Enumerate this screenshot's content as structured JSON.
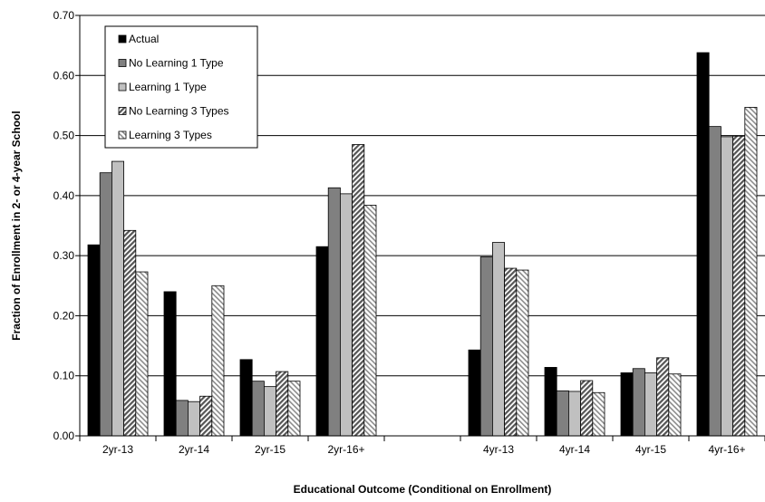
{
  "chart_data": {
    "type": "bar",
    "title": "",
    "xlabel": "Educational Outcome (Conditional on Enrollment)",
    "ylabel": "Fraction of Enrollment in 2- or 4-year School",
    "ylim": [
      0,
      0.7
    ],
    "yticks": [
      "0.00",
      "0.10",
      "0.20",
      "0.30",
      "0.40",
      "0.50",
      "0.60",
      "0.70"
    ],
    "grid": true,
    "legend_position": "top-left",
    "categories": [
      "2yr-13",
      "2yr-14",
      "2yr-15",
      "2yr-16+",
      "",
      "4yr-13",
      "4yr-14",
      "4yr-15",
      "4yr-16+"
    ],
    "series": [
      {
        "name": "Actual",
        "color": "#000000",
        "pattern": "solid",
        "values": [
          0.318,
          0.24,
          0.127,
          0.315,
          null,
          0.143,
          0.114,
          0.105,
          0.638
        ]
      },
      {
        "name": "No Learning 1 Type",
        "color": "#808080",
        "pattern": "solid",
        "values": [
          0.438,
          0.059,
          0.091,
          0.413,
          null,
          0.298,
          0.075,
          0.112,
          0.515
        ]
      },
      {
        "name": "Learning 1 Type",
        "color": "#c0c0c0",
        "pattern": "solid",
        "values": [
          0.457,
          0.057,
          0.082,
          0.403,
          null,
          0.322,
          0.074,
          0.105,
          0.498
        ]
      },
      {
        "name": "No Learning 3 Types",
        "color": "#808080",
        "pattern": "hatch-dark",
        "values": [
          0.342,
          0.066,
          0.107,
          0.485,
          null,
          0.279,
          0.092,
          0.13,
          0.499
        ]
      },
      {
        "name": "Learning 3 Types",
        "color": "#bfbfbf",
        "pattern": "hatch-light",
        "values": [
          0.273,
          0.25,
          0.091,
          0.384,
          null,
          0.276,
          0.072,
          0.103,
          0.547
        ]
      }
    ]
  }
}
